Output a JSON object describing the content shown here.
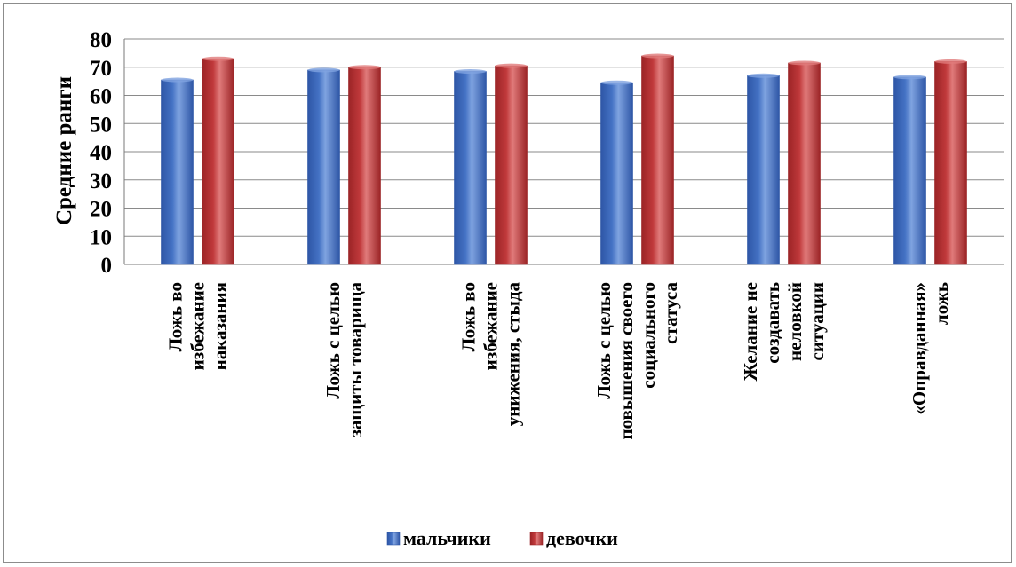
{
  "chart_data": {
    "type": "bar",
    "ylabel": "Средние ранги",
    "ylim": [
      0,
      80
    ],
    "yticks": [
      0,
      10,
      20,
      30,
      40,
      50,
      60,
      70,
      80
    ],
    "grid": true,
    "legend_position": "bottom",
    "categories": [
      [
        "Ложь во",
        "избежание",
        "наказания"
      ],
      [
        "Ложь с целью",
        "защиты товарища"
      ],
      [
        "Ложь во",
        "избежание",
        "унижения, стыда"
      ],
      [
        "Ложь с целью",
        "повышения своего",
        "социального",
        "статуса"
      ],
      [
        "Желание не",
        "создавать",
        "неловкой",
        "ситуации"
      ],
      [
        "«Оправданная»",
        "ложь"
      ]
    ],
    "series": [
      {
        "name": "мальчики",
        "color": "#4472C4",
        "values": [
          65.5,
          69,
          68.5,
          64.5,
          67,
          66.5
        ]
      },
      {
        "name": "девочки",
        "color": "#C0393B",
        "values": [
          73,
          70,
          70.5,
          74,
          71.5,
          72
        ]
      }
    ]
  }
}
